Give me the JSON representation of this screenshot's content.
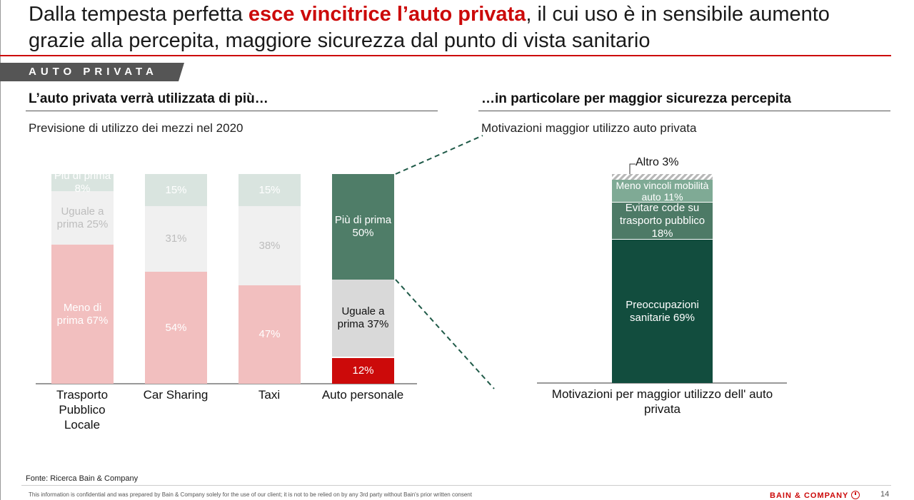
{
  "header": {
    "title_part1": "Dalla tempesta perfetta ",
    "title_highlight": "esce vincitrice l’auto privata",
    "title_part2": ", il cui uso è in sensibile aumento grazie alla percepita, maggiore sicurezza dal punto di vista sanitario",
    "section_tag": "AUTO PRIVATA"
  },
  "left_panel": {
    "heading": "L’auto privata verrà utilizzata di più…",
    "caption": "Previsione di utilizzo dei mezzi nel 2020"
  },
  "right_panel": {
    "heading": "…in particolare per maggior sicurezza percepita",
    "caption": "Motivazioni maggior utilizzo auto privata"
  },
  "colors": {
    "accent_red": "#cc0a0a",
    "meno_pink": "#f2bfbf",
    "uguale_light": "#f0f0f0",
    "piu_light": "#d9e4df",
    "piu_green": "#4f7d68",
    "uguale_gray": "#d9d9d9",
    "dark_green": "#124d3e",
    "mid_green": "#4d7a66",
    "light_green": "#7faa95"
  },
  "chart_data": [
    {
      "type": "bar",
      "stacked": true,
      "categories": [
        "Trasporto Pubblico Locale",
        "Car Sharing",
        "Taxi",
        "Auto personale"
      ],
      "series": [
        {
          "name": "Meno di prima",
          "values": [
            67,
            54,
            47,
            12
          ]
        },
        {
          "name": "Uguale a prima",
          "values": [
            25,
            31,
            38,
            37
          ]
        },
        {
          "name": "Più di prima",
          "values": [
            8,
            15,
            15,
            50
          ]
        }
      ],
      "segment_labels": [
        [
          "Meno di prima 67%",
          "Uguale a prima 25%",
          "Più di prima 8%"
        ],
        [
          "54%",
          "31%",
          "15%"
        ],
        [
          "47%",
          "38%",
          "15%"
        ],
        [
          "12%",
          "Uguale a prima 37%",
          "Più di prima 50%"
        ]
      ],
      "ylim": [
        0,
        100
      ]
    },
    {
      "type": "bar",
      "stacked": true,
      "categories": [
        "Motivazioni per maggior utilizzo dell' auto privata"
      ],
      "series": [
        {
          "name": "Preoccupazioni sanitarie",
          "values": [
            69
          ]
        },
        {
          "name": "Evitare code su trasporto pubblico",
          "values": [
            18
          ]
        },
        {
          "name": "Meno vincoli mobilità auto",
          "values": [
            11
          ]
        },
        {
          "name": "Altro",
          "values": [
            3
          ]
        }
      ],
      "segment_labels": [
        [
          "Preoccupazioni sanitarie 69%",
          "Evitare code su trasporto pubblico 18%",
          "Meno vincoli mobilità auto 11%",
          "Altro  3%"
        ]
      ],
      "ylim": [
        0,
        100
      ]
    }
  ],
  "footer": {
    "source": "Fonte: Ricerca Bain & Company",
    "disclaimer": "This information is confidential and was prepared by Bain & Company solely for the use of our client; it is not to be relied on by any 3rd party without Bain's prior written consent",
    "brand": "BAIN & COMPANY",
    "page": "14"
  }
}
